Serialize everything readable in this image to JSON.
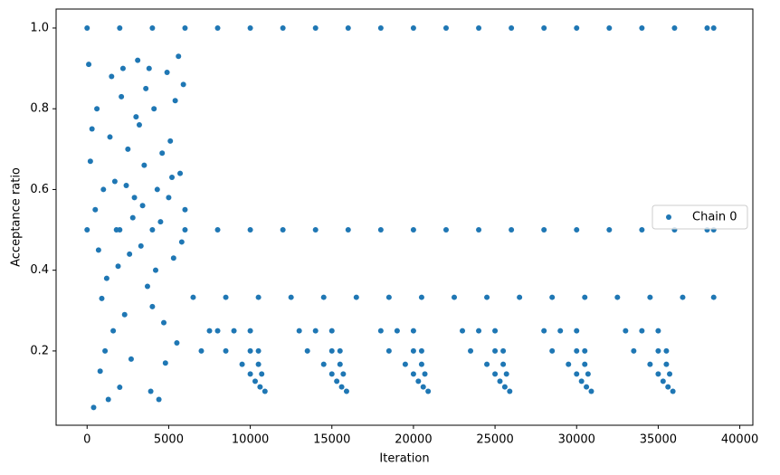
{
  "chart_data": {
    "type": "scatter",
    "xlabel": "Iteration",
    "ylabel": "Acceptance ratio",
    "xlim": [
      -1900,
      40800
    ],
    "ylim": [
      0.016,
      1.047
    ],
    "xticks": [
      0,
      5000,
      10000,
      15000,
      20000,
      25000,
      30000,
      35000,
      40000
    ],
    "yticks": [
      0.2,
      0.4,
      0.6,
      0.8,
      {
        "value": 1,
        "label": "1.0"
      }
    ],
    "grid": false,
    "legend": "center right",
    "series": [
      {
        "name": "Chain 0",
        "color": "#1f77b4",
        "x": [
          0,
          2000,
          4000,
          6000,
          8000,
          10000,
          12000,
          14000,
          16000,
          18000,
          20000,
          22000,
          24000,
          26000,
          28000,
          30000,
          32000,
          34000,
          36000,
          38000,
          38400,
          0,
          2000,
          4000,
          6000,
          8000,
          10000,
          12000,
          14000,
          16000,
          18000,
          20000,
          22000,
          24000,
          26000,
          28000,
          30000,
          32000,
          34000,
          36000,
          38000,
          38400,
          6500,
          8500,
          10500,
          12500,
          14500,
          16500,
          18500,
          20500,
          22500,
          24500,
          26500,
          28500,
          30500,
          32500,
          34500,
          36500,
          38400,
          100,
          300,
          500,
          700,
          900,
          1100,
          1300,
          1500,
          1700,
          1900,
          2100,
          2300,
          2500,
          2700,
          2900,
          3100,
          3300,
          3500,
          3700,
          3900,
          4100,
          4300,
          4500,
          4700,
          4900,
          5100,
          5300,
          5500,
          5700,
          5900,
          200,
          600,
          1000,
          1400,
          1800,
          2200,
          2600,
          3000,
          3400,
          3800,
          4200,
          4600,
          5000,
          5400,
          5800,
          400,
          800,
          1200,
          1600,
          2000,
          2400,
          2800,
          3200,
          3600,
          4000,
          4400,
          4800,
          5200,
          5600,
          6000,
          7000,
          7500,
          8000,
          9000,
          10000,
          8500,
          10000,
          10500,
          9500,
          10500,
          10000,
          10700,
          10300,
          10600,
          10900,
          13000,
          14000,
          15000,
          13500,
          15000,
          15500,
          14500,
          15500,
          15000,
          15700,
          15300,
          15600,
          15900,
          18000,
          19000,
          20000,
          18500,
          20000,
          20500,
          19500,
          20500,
          20000,
          20700,
          20300,
          20600,
          20900,
          23000,
          24000,
          25000,
          23500,
          25000,
          25500,
          24500,
          25500,
          25000,
          25700,
          25300,
          25600,
          25900,
          28000,
          29000,
          30000,
          28500,
          30000,
          30500,
          29500,
          30500,
          30000,
          30700,
          30300,
          30600,
          30900,
          33000,
          34000,
          35000,
          33500,
          35000,
          35500,
          34500,
          35500,
          35000,
          35700,
          35300,
          35600,
          35900
        ],
        "y": [
          1,
          1,
          1,
          1,
          1,
          1,
          1,
          1,
          1,
          1,
          1,
          1,
          1,
          1,
          1,
          1,
          1,
          1,
          1,
          1,
          1,
          0.5,
          0.5,
          0.5,
          0.5,
          0.5,
          0.5,
          0.5,
          0.5,
          0.5,
          0.5,
          0.5,
          0.5,
          0.5,
          0.5,
          0.5,
          0.5,
          0.5,
          0.5,
          0.5,
          0.5,
          0.5,
          0.333,
          0.333,
          0.333,
          0.333,
          0.333,
          0.333,
          0.333,
          0.333,
          0.333,
          0.333,
          0.333,
          0.333,
          0.333,
          0.333,
          0.333,
          0.333,
          0.333,
          0.91,
          0.75,
          0.55,
          0.45,
          0.33,
          0.2,
          0.08,
          0.88,
          0.62,
          0.41,
          0.83,
          0.29,
          0.7,
          0.18,
          0.58,
          0.92,
          0.46,
          0.66,
          0.36,
          0.1,
          0.8,
          0.6,
          0.52,
          0.27,
          0.89,
          0.72,
          0.43,
          0.22,
          0.64,
          0.86,
          0.67,
          0.8,
          0.6,
          0.73,
          0.5,
          0.9,
          0.44,
          0.78,
          0.56,
          0.9,
          0.4,
          0.69,
          0.58,
          0.82,
          0.47,
          0.06,
          0.15,
          0.38,
          0.25,
          0.11,
          0.61,
          0.53,
          0.76,
          0.85,
          0.31,
          0.08,
          0.17,
          0.63,
          0.93,
          0.55,
          0.2,
          0.25,
          0.25,
          0.25,
          0.25,
          0.2,
          0.2,
          0.2,
          0.167,
          0.167,
          0.143,
          0.143,
          0.125,
          0.111,
          0.1,
          0.25,
          0.25,
          0.25,
          0.2,
          0.2,
          0.2,
          0.167,
          0.167,
          0.143,
          0.143,
          0.125,
          0.111,
          0.1,
          0.25,
          0.25,
          0.25,
          0.2,
          0.2,
          0.2,
          0.167,
          0.167,
          0.143,
          0.143,
          0.125,
          0.111,
          0.1,
          0.25,
          0.25,
          0.25,
          0.2,
          0.2,
          0.2,
          0.167,
          0.167,
          0.143,
          0.143,
          0.125,
          0.111,
          0.1,
          0.25,
          0.25,
          0.25,
          0.2,
          0.2,
          0.2,
          0.167,
          0.167,
          0.143,
          0.143,
          0.125,
          0.111,
          0.1,
          0.25,
          0.25,
          0.25,
          0.2,
          0.2,
          0.2,
          0.167,
          0.167,
          0.143,
          0.143,
          0.125,
          0.111,
          0.1
        ]
      }
    ]
  }
}
